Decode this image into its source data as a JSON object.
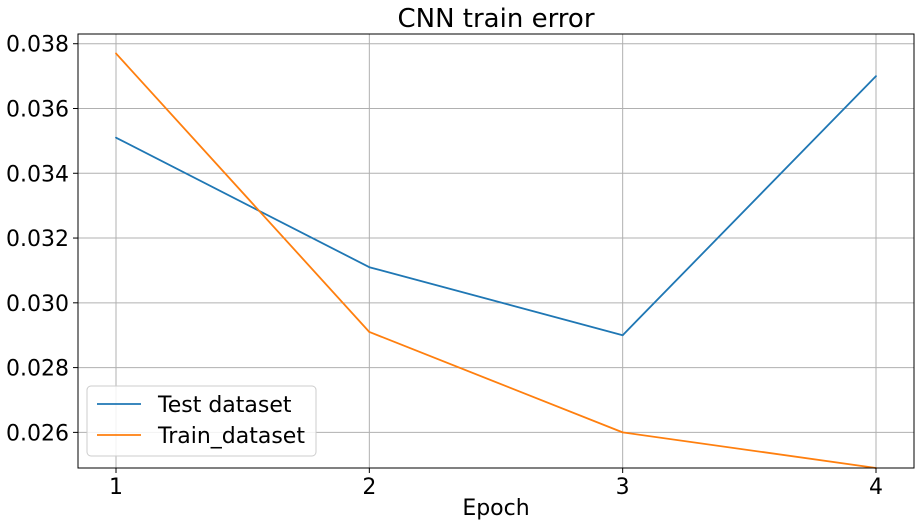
{
  "chart_data": {
    "type": "line",
    "title": "CNN train error",
    "xlabel": "Epoch",
    "ylabel": "",
    "x": [
      1,
      2,
      3,
      4
    ],
    "xticks": [
      "1",
      "2",
      "3",
      "4"
    ],
    "xlim": [
      0.85,
      4.15
    ],
    "ylim": [
      0.0249,
      0.0383
    ],
    "yticks": [
      "0.026",
      "0.028",
      "0.030",
      "0.032",
      "0.034",
      "0.036",
      "0.038"
    ],
    "grid": true,
    "legend_position": "lower-left",
    "series": [
      {
        "name": "Test dataset",
        "color": "#1f77b4",
        "values": [
          0.0351,
          0.0311,
          0.029,
          0.037
        ]
      },
      {
        "name": "Train_dataset",
        "color": "#ff7f0e",
        "values": [
          0.0377,
          0.0291,
          0.026,
          0.0249
        ]
      }
    ]
  }
}
